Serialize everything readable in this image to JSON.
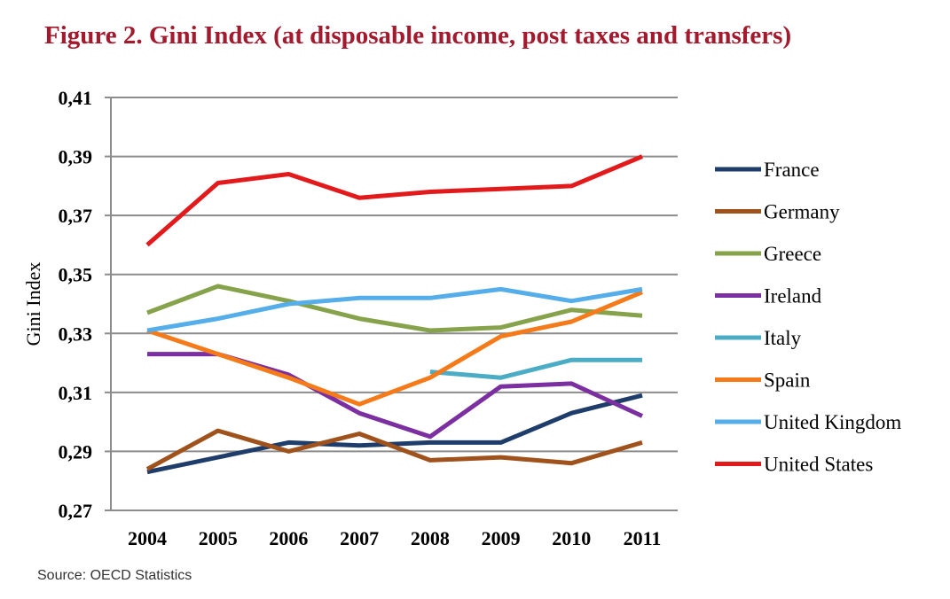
{
  "title": "Figure 2. Gini Index (at disposable income, post taxes and transfers)",
  "source": "Source: OECD Statistics",
  "chart_data": {
    "type": "line",
    "ylabel": "Gini Index",
    "xlabel": "",
    "ylim": [
      0.27,
      0.41
    ],
    "yticks": [
      0.27,
      0.29,
      0.31,
      0.33,
      0.35,
      0.37,
      0.39,
      0.41
    ],
    "ytick_labels": [
      "0,27",
      "0,29",
      "0,31",
      "0,33",
      "0,35",
      "0,37",
      "0,39",
      "0,41"
    ],
    "categories": [
      "2004",
      "2005",
      "2006",
      "2007",
      "2008",
      "2009",
      "2010",
      "2011"
    ],
    "grid": "horizontal",
    "legend_position": "right",
    "series": [
      {
        "name": "France",
        "color": "#1f3d6b",
        "values": [
          0.283,
          0.288,
          0.293,
          0.292,
          0.293,
          0.293,
          0.303,
          0.309
        ]
      },
      {
        "name": "Germany",
        "color": "#a0521c",
        "values": [
          0.284,
          0.297,
          0.29,
          0.296,
          0.287,
          0.288,
          0.286,
          0.293
        ]
      },
      {
        "name": "Greece",
        "color": "#86a34b",
        "values": [
          0.337,
          0.346,
          0.341,
          0.335,
          0.331,
          0.332,
          0.338,
          0.336
        ]
      },
      {
        "name": "Ireland",
        "color": "#7b2fa0",
        "values": [
          0.323,
          0.323,
          0.316,
          0.303,
          0.295,
          0.312,
          0.313,
          0.302
        ]
      },
      {
        "name": "Italy",
        "color": "#4bacc6",
        "values": [
          null,
          null,
          null,
          null,
          0.317,
          0.315,
          0.321,
          0.321
        ]
      },
      {
        "name": "Spain",
        "color": "#f57a1a",
        "values": [
          0.331,
          0.323,
          0.315,
          0.306,
          0.315,
          0.329,
          0.334,
          0.344
        ]
      },
      {
        "name": "United Kingdom",
        "color": "#55aeea",
        "values": [
          0.331,
          0.335,
          0.34,
          0.342,
          0.342,
          0.345,
          0.341,
          0.345
        ]
      },
      {
        "name": "United States",
        "color": "#e31a1c",
        "values": [
          0.36,
          0.381,
          0.384,
          0.376,
          0.378,
          0.379,
          0.38,
          0.39
        ]
      }
    ]
  }
}
